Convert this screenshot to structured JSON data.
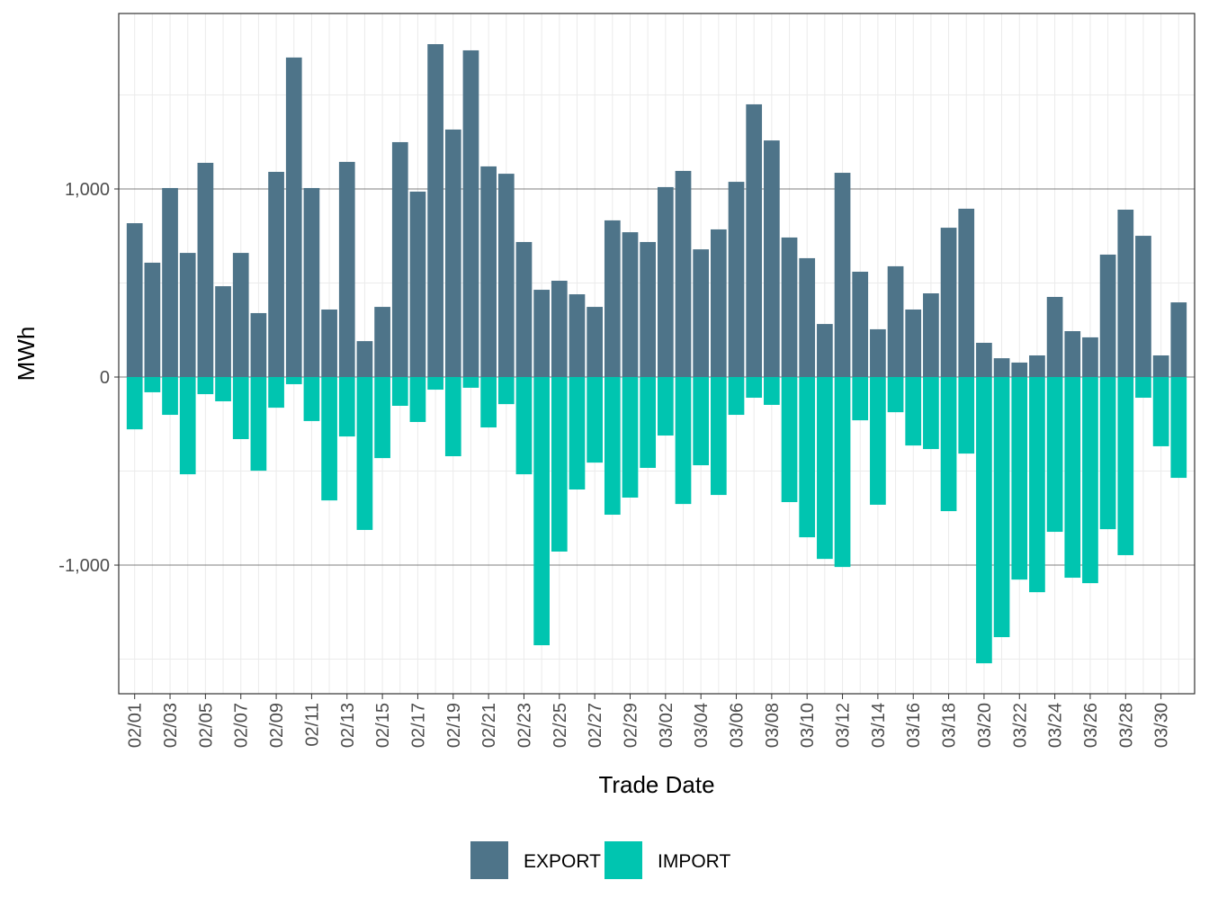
{
  "chart_data": {
    "type": "bar",
    "x_label": "Trade Date",
    "y_label": "MWh",
    "categories": [
      "02/01",
      null,
      "02/03",
      null,
      "02/05",
      null,
      "02/07",
      null,
      "02/09",
      null,
      "02/11",
      null,
      "02/13",
      null,
      "02/15",
      null,
      "02/17",
      null,
      "02/19",
      null,
      "02/21",
      null,
      "02/23",
      null,
      "02/25",
      null,
      "02/27",
      null,
      "02/29",
      null,
      "03/02",
      null,
      "03/04",
      null,
      "03/06",
      null,
      "03/08",
      null,
      "03/10",
      null,
      "03/12",
      null,
      "03/14",
      null,
      "03/16",
      null,
      "03/18",
      null,
      "03/20",
      null,
      "03/22",
      null,
      "03/24",
      null,
      "03/26",
      null,
      "03/28",
      null,
      "03/30",
      null
    ],
    "series": [
      {
        "name": "EXPORT",
        "color": "#4e7489",
        "values": [
          818,
          608,
          1005,
          660,
          1139,
          483,
          660,
          340,
          1091,
          1699,
          1005,
          359,
          1144,
          191,
          373,
          1249,
          986,
          1770,
          1316,
          1737,
          1120,
          1081,
          718,
          464,
          512,
          440,
          373,
          833,
          770,
          718,
          1010,
          1096,
          679,
          785,
          1038,
          1450,
          1258,
          742,
          632,
          282,
          1086,
          560,
          254,
          589,
          359,
          445,
          794,
          895,
          182,
          100,
          77,
          115,
          426,
          244,
          211,
          651,
          890,
          751,
          115,
          397
        ]
      },
      {
        "name": "IMPORT",
        "color": "#00c5b0",
        "values": [
          -278,
          -81,
          -201,
          -517,
          -91,
          -129,
          -330,
          -498,
          -163,
          -38,
          -234,
          -656,
          -316,
          -813,
          -431,
          -153,
          -239,
          -67,
          -421,
          -57,
          -268,
          -144,
          -517,
          -1426,
          -928,
          -598,
          -455,
          -732,
          -641,
          -483,
          -311,
          -675,
          -469,
          -627,
          -201,
          -110,
          -148,
          -665,
          -852,
          -967,
          -1010,
          -230,
          -679,
          -187,
          -364,
          -383,
          -713,
          -407,
          -1522,
          -1383,
          -1077,
          -1144,
          -823,
          -1067,
          -1096,
          -809,
          -947,
          -110,
          -368,
          -536
        ]
      }
    ],
    "ylim": [
      -1684,
      1933
    ],
    "yticks": [
      {
        "value": -1000,
        "label": "-1,000"
      },
      0,
      {
        "value": 1000,
        "label": "1,000"
      }
    ],
    "grid": true,
    "legend": "bottom"
  }
}
